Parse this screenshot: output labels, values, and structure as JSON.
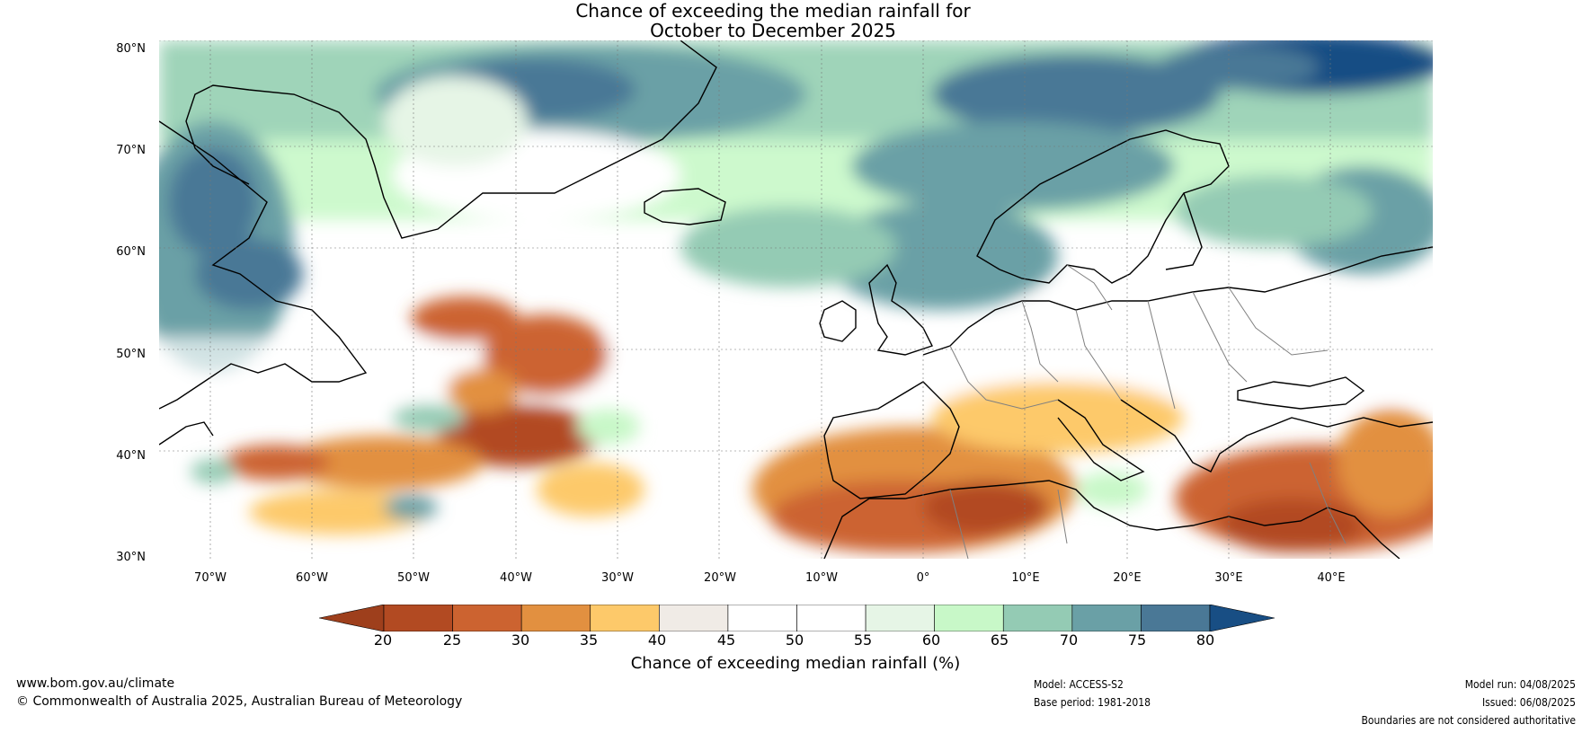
{
  "title": {
    "line1": "Chance of exceeding the median rainfall for",
    "line2": "October to December 2025"
  },
  "map": {
    "lat_labels": [
      "80°N",
      "70°N",
      "60°N",
      "50°N",
      "40°N",
      "30°N"
    ],
    "lon_labels": [
      "70°W",
      "60°W",
      "50°W",
      "40°W",
      "30°W",
      "20°W",
      "10°W",
      "0°",
      "10°E",
      "20°E",
      "30°E",
      "40°E"
    ],
    "lat_range": [
      30,
      80
    ],
    "lon_range": [
      -75,
      50
    ],
    "grid": true
  },
  "colorbar": {
    "ticks": [
      "20",
      "25",
      "30",
      "35",
      "40",
      "45",
      "50",
      "55",
      "60",
      "65",
      "70",
      "75",
      "80"
    ],
    "colors": [
      "#9e3f1c",
      "#b24a22",
      "#cc6330",
      "#e29040",
      "#fdc96a",
      "#f0ebe6",
      "#ffffff",
      "#ffffff",
      "#e6f5e6",
      "#c8f8c8",
      "#94cbb4",
      "#6aa0a6",
      "#4a7896",
      "#184e84"
    ],
    "label": "Chance of exceeding median rainfall (%)"
  },
  "footer": {
    "website": "www.bom.gov.au/climate",
    "copyright": "© Commonwealth of Australia 2025, Australian Bureau of Meteorology",
    "model": "Model: ACCESS-S2",
    "base_period": "Base period: 1981-2018",
    "model_run": "Model run: 04/08/2025",
    "issued": "Issued: 06/08/2025",
    "disclaimer": "Boundaries are not considered authoritative"
  }
}
